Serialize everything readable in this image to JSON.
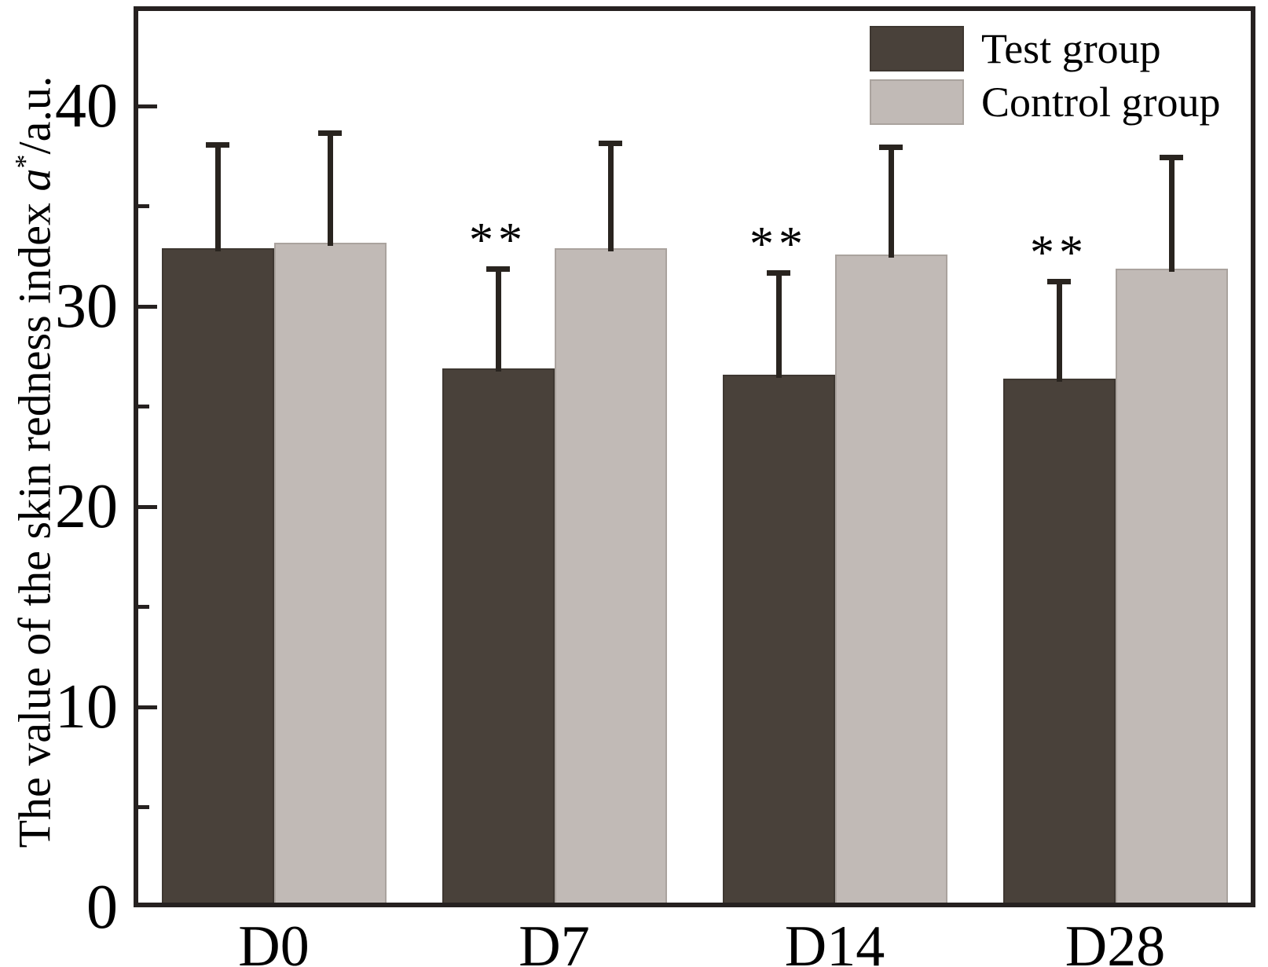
{
  "chart_data": {
    "type": "bar",
    "title": "",
    "categories": [
      "D0",
      "D7",
      "D14",
      "D28"
    ],
    "series": [
      {
        "name": "Test group",
        "values": [
          32.9,
          26.9,
          26.6,
          26.4
        ],
        "errors_plus": [
          5.3,
          5.1,
          5.2,
          5.0
        ],
        "color": "#49413a"
      },
      {
        "name": "Control group",
        "values": [
          33.2,
          32.9,
          32.6,
          31.9
        ],
        "errors_plus": [
          5.6,
          5.4,
          5.5,
          5.7
        ],
        "color": "#c1bab6"
      }
    ],
    "xlabel": "",
    "ylabel": "The value of the skin redness index a*/a.u.",
    "ylabel_parts": {
      "prefix": "The value of the skin redness index ",
      "variable": "a",
      "superscript": "*",
      "suffix": "/a.u."
    },
    "ylim": [
      0,
      45
    ],
    "yticks_major": [
      0,
      10,
      20,
      30,
      40
    ],
    "yticks_minor": [
      5,
      15,
      25,
      35
    ],
    "grid": false,
    "legend_position": "top-right-inside",
    "annotations": [
      {
        "text": "**",
        "series": "Test group",
        "category": "D7"
      },
      {
        "text": "**",
        "series": "Test group",
        "category": "D14"
      },
      {
        "text": "**",
        "series": "Test group",
        "category": "D28"
      }
    ]
  },
  "colors": {
    "axis": "#262120",
    "error_bar": "#29241f",
    "test_bar_border": "#3e3731",
    "control_bar_border": "#aaa39e",
    "text": "#000000",
    "background": "#ffffff"
  }
}
